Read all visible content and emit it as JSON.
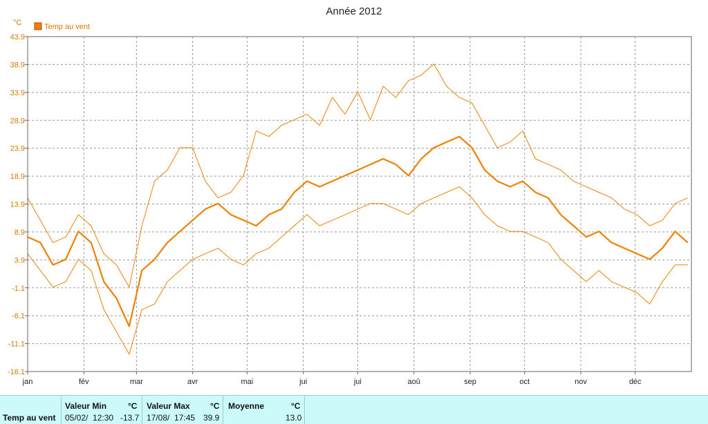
{
  "chart_data": {
    "type": "line",
    "title": "Année 2012",
    "ylabel": "°C",
    "xlabel": "",
    "ylim": [
      -16.1,
      43.9
    ],
    "yticks": [
      "43.9",
      "38.9",
      "33.9",
      "28.9",
      "23.9",
      "18.9",
      "13.9",
      "8.9",
      "3.9",
      "-1.1",
      "-6.1",
      "-11.1",
      "-16.1"
    ],
    "month_labels": [
      "jan",
      "fév",
      "mar",
      "avr",
      "mai",
      "jui",
      "jui",
      "aoû",
      "sep",
      "oct",
      "nov",
      "déc"
    ],
    "month_starts": [
      0,
      31,
      60,
      91,
      121,
      152,
      182,
      213,
      244,
      274,
      305,
      335
    ],
    "x_days_total": 366,
    "legend": {
      "position": "top-left",
      "entries": [
        "Temp au vent"
      ]
    },
    "grid": true,
    "color": "#f08000",
    "weekly_x": [
      0,
      7,
      14,
      21,
      28,
      35,
      42,
      49,
      56,
      63,
      70,
      77,
      84,
      91,
      98,
      105,
      112,
      119,
      126,
      133,
      140,
      147,
      154,
      161,
      168,
      175,
      182,
      189,
      196,
      203,
      210,
      217,
      224,
      231,
      238,
      245,
      252,
      259,
      266,
      273,
      280,
      287,
      294,
      301,
      308,
      315,
      322,
      329,
      336,
      343,
      350,
      357,
      364
    ],
    "series": [
      {
        "name": "Temp au vent",
        "role": "mean",
        "values": [
          8,
          7,
          3,
          4,
          9,
          7,
          0,
          -3,
          -8,
          2,
          4,
          7,
          9,
          11,
          13,
          14,
          12,
          11,
          10,
          12,
          13,
          16,
          18,
          17,
          18,
          19,
          20,
          21,
          22,
          21,
          19,
          22,
          24,
          25,
          26,
          24,
          20,
          18,
          17,
          18,
          16,
          15,
          12,
          10,
          8,
          9,
          7,
          6,
          5,
          4,
          6,
          9,
          7
        ]
      },
      {
        "name": "",
        "role": "max",
        "values": [
          15,
          11,
          7,
          8,
          12,
          10,
          5,
          3,
          -1,
          10,
          18,
          20,
          24,
          24,
          18,
          15,
          16,
          19,
          27,
          26,
          28,
          29,
          30,
          28,
          33,
          30,
          34,
          29,
          35,
          33,
          36,
          37,
          39,
          35,
          33,
          32,
          28,
          24,
          25,
          27,
          22,
          21,
          20,
          18,
          17,
          16,
          15,
          13,
          12,
          10,
          11,
          14,
          15
        ]
      },
      {
        "name": "",
        "role": "min",
        "values": [
          5,
          2,
          -1,
          0,
          4,
          2,
          -5,
          -9,
          -13,
          -5,
          -4,
          0,
          2,
          4,
          5,
          6,
          4,
          3,
          5,
          6,
          8,
          10,
          12,
          10,
          11,
          12,
          13,
          14,
          14,
          13,
          12,
          14,
          15,
          16,
          17,
          15,
          12,
          10,
          9,
          9,
          8,
          7,
          4,
          2,
          0,
          2,
          0,
          -1,
          -2,
          -4,
          0,
          3,
          3
        ]
      }
    ]
  },
  "stats": {
    "row_label": "Temp au vent",
    "min": {
      "header": "Valeur Min",
      "unit": "°C",
      "datetime": "05/02/  12:30",
      "value": "-13.7"
    },
    "max": {
      "header": "Valeur Max",
      "unit": "°C",
      "datetime": "17/08/  17:45",
      "value": "39.9"
    },
    "avg": {
      "header": "Moyenne",
      "unit": "°C",
      "value": "13.0"
    }
  }
}
